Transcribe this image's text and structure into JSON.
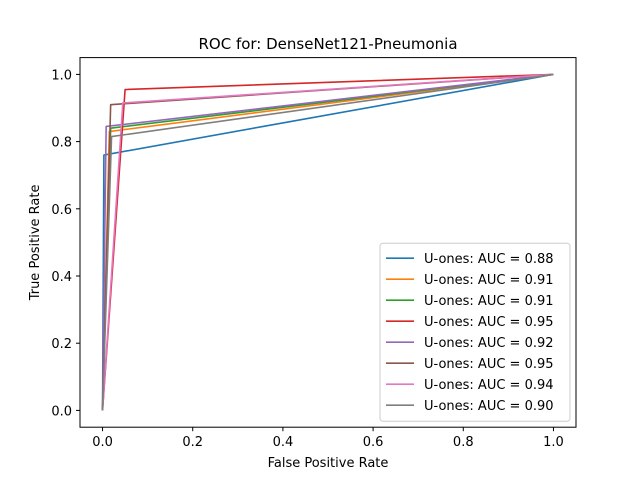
{
  "chart_data": {
    "type": "line",
    "title": "ROC for: DenseNet121-Pneumonia",
    "xlabel": "False Positive Rate",
    "ylabel": "True Positive Rate",
    "xlim": [
      -0.05,
      1.05
    ],
    "ylim": [
      -0.05,
      1.05
    ],
    "xticks": [
      0.0,
      0.2,
      0.4,
      0.6,
      0.8,
      1.0
    ],
    "yticks": [
      0.0,
      0.2,
      0.4,
      0.6,
      0.8,
      1.0
    ],
    "xtick_labels": [
      "0.0",
      "0.2",
      "0.4",
      "0.6",
      "0.8",
      "1.0"
    ],
    "ytick_labels": [
      "0.0",
      "0.2",
      "0.4",
      "0.6",
      "0.8",
      "1.0"
    ],
    "grid": false,
    "legend_position": "lower-right",
    "series": [
      {
        "name": "U-ones: AUC = 0.88",
        "color": "#1f77b4",
        "x": [
          0.0,
          0.003,
          1.0
        ],
        "y": [
          0.0,
          0.76,
          1.0
        ]
      },
      {
        "name": "U-ones: AUC = 0.91",
        "color": "#ff7f0e",
        "x": [
          0.0,
          0.015,
          1.0
        ],
        "y": [
          0.0,
          0.83,
          1.0
        ]
      },
      {
        "name": "U-ones: AUC = 0.91",
        "color": "#2ca02c",
        "x": [
          0.0,
          0.018,
          1.0
        ],
        "y": [
          0.0,
          0.84,
          1.0
        ]
      },
      {
        "name": "U-ones: AUC = 0.95",
        "color": "#d62728",
        "x": [
          0.0,
          0.05,
          1.0
        ],
        "y": [
          0.0,
          0.955,
          1.0
        ]
      },
      {
        "name": "U-ones: AUC = 0.92",
        "color": "#9467bd",
        "x": [
          0.0,
          0.008,
          1.0
        ],
        "y": [
          0.0,
          0.845,
          1.0
        ]
      },
      {
        "name": "U-ones: AUC = 0.95",
        "color": "#8c564b",
        "x": [
          0.0,
          0.018,
          1.0
        ],
        "y": [
          0.0,
          0.91,
          1.0
        ]
      },
      {
        "name": "U-ones: AUC = 0.94",
        "color": "#e377c2",
        "x": [
          0.0,
          0.045,
          1.0
        ],
        "y": [
          0.0,
          0.915,
          1.0
        ]
      },
      {
        "name": "U-ones: AUC = 0.90",
        "color": "#7f7f7f",
        "x": [
          0.0,
          0.02,
          1.0
        ],
        "y": [
          0.0,
          0.815,
          1.0
        ]
      }
    ]
  }
}
